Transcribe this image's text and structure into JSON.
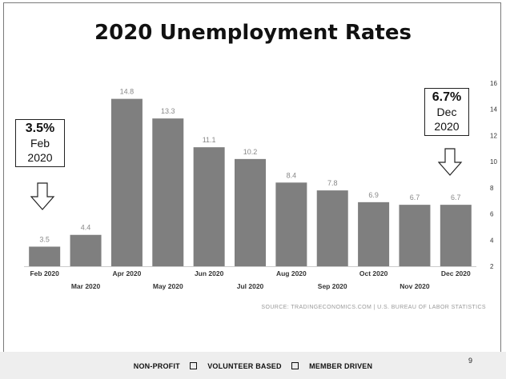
{
  "slide": {
    "title": "2020 Unemployment Rates",
    "page_number": "9",
    "footer": [
      "NON-PROFIT",
      "VOLUNTEER BASED",
      "MEMBER DRIVEN"
    ]
  },
  "callouts": {
    "left": {
      "value": "3.5%",
      "month": "Feb",
      "year": "2020"
    },
    "right": {
      "value": "6.7%",
      "month": "Dec",
      "year": "2020"
    }
  },
  "chart_data": {
    "type": "bar",
    "categories": [
      "Feb 2020",
      "Mar 2020",
      "Apr 2020",
      "May 2020",
      "Jun 2020",
      "Jul 2020",
      "Aug 2020",
      "Sep 2020",
      "Oct 2020",
      "Nov 2020",
      "Dec 2020"
    ],
    "values": [
      3.5,
      4.4,
      14.8,
      13.3,
      11.1,
      10.2,
      8.4,
      7.8,
      6.9,
      6.7,
      6.7
    ],
    "data_labels": [
      "3.5",
      "4.4",
      "14.8",
      "13.3",
      "11.1",
      "10.2",
      "8.4",
      "7.8",
      "6.9",
      "6.7",
      "6.7"
    ],
    "y_ticks": [
      2,
      4,
      6,
      8,
      10,
      12,
      14,
      16
    ],
    "ylim": [
      2,
      16
    ],
    "y_axis_side": "right",
    "grid": false,
    "legend": "none",
    "source": "SOURCE: TRADINGECONOMICS.COM | U.S. BUREAU OF LABOR STATISTICS",
    "colors": {
      "bar": "#7f7f7f",
      "label": "#888888",
      "axis": "#cccccc"
    }
  }
}
